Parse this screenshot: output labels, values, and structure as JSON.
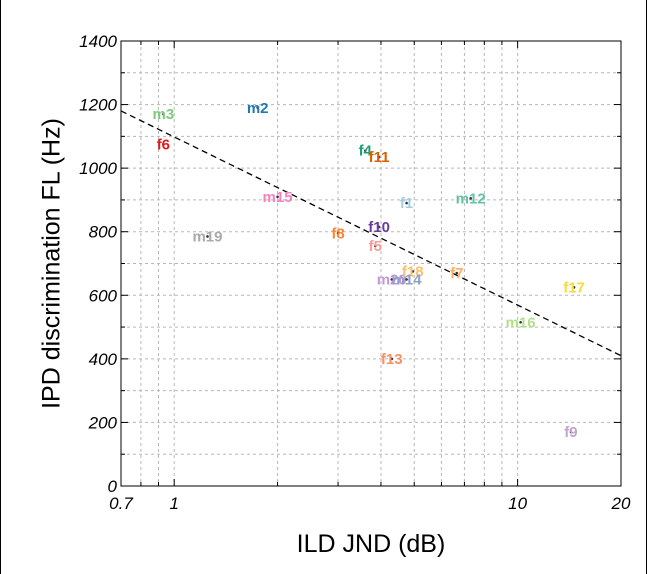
{
  "chart_data": {
    "type": "scatter",
    "title": "",
    "xlabel": "ILD JND (dB)",
    "ylabel": "IPD discrimination FL (Hz)",
    "xscale": "log",
    "xlim": [
      0.7,
      20
    ],
    "ylim": [
      0,
      1400
    ],
    "x_ticks": [
      {
        "value": 0.7,
        "label": "0.7"
      },
      {
        "value": 1,
        "label": "1"
      },
      {
        "value": 10,
        "label": "10"
      },
      {
        "value": 20,
        "label": "20"
      }
    ],
    "y_ticks": [
      {
        "value": 0,
        "label": "0"
      },
      {
        "value": 200,
        "label": "200"
      },
      {
        "value": 400,
        "label": "400"
      },
      {
        "value": 600,
        "label": "600"
      },
      {
        "value": 800,
        "label": "800"
      },
      {
        "value": 1000,
        "label": "1000"
      },
      {
        "value": 1200,
        "label": "1200"
      },
      {
        "value": 1400,
        "label": "1400"
      }
    ],
    "grid": true,
    "points": [
      {
        "label": "m3",
        "x": 0.93,
        "y": 1170,
        "color": "#7fc97f"
      },
      {
        "label": "m2",
        "x": 1.75,
        "y": 1190,
        "color": "#1f78b4"
      },
      {
        "label": "f6",
        "x": 0.93,
        "y": 1075,
        "color": "#e31a1c"
      },
      {
        "label": "f4",
        "x": 3.6,
        "y": 1055,
        "color": "#1b9e77"
      },
      {
        "label": "f11",
        "x": 3.95,
        "y": 1035,
        "color": "#d95f02"
      },
      {
        "label": "m15",
        "x": 2.0,
        "y": 910,
        "color": "#f781bf"
      },
      {
        "label": "f1",
        "x": 4.75,
        "y": 890,
        "color": "#a6cee3"
      },
      {
        "label": "m12",
        "x": 7.3,
        "y": 905,
        "color": "#66c2a5"
      },
      {
        "label": "m19",
        "x": 1.25,
        "y": 785,
        "color": "#aaaaaa"
      },
      {
        "label": "f8",
        "x": 3.0,
        "y": 795,
        "color": "#fb8535"
      },
      {
        "label": "f10",
        "x": 3.95,
        "y": 815,
        "color": "#6a3d9a"
      },
      {
        "label": "f5",
        "x": 3.85,
        "y": 755,
        "color": "#fb9a99"
      },
      {
        "label": "m20",
        "x": 4.3,
        "y": 650,
        "color": "#c497d5"
      },
      {
        "label": "f18",
        "x": 4.95,
        "y": 675,
        "color": "#fdbf6f"
      },
      {
        "label": "m14",
        "x": 4.75,
        "y": 650,
        "color": "#8da0cb"
      },
      {
        "label": "f7",
        "x": 6.65,
        "y": 670,
        "color": "#fdae61"
      },
      {
        "label": "f17",
        "x": 14.6,
        "y": 625,
        "color": "#ffd92f"
      },
      {
        "label": "m16",
        "x": 10.2,
        "y": 515,
        "color": "#b2df8a"
      },
      {
        "label": "f13",
        "x": 4.3,
        "y": 400,
        "color": "#fc8d62"
      },
      {
        "label": "f9",
        "x": 14.3,
        "y": 170,
        "color": "#c2a5cf"
      }
    ],
    "fit_line": {
      "x": [
        0.7,
        20
      ],
      "y": [
        1180,
        410
      ],
      "style": "dashed",
      "color": "#000000"
    }
  }
}
